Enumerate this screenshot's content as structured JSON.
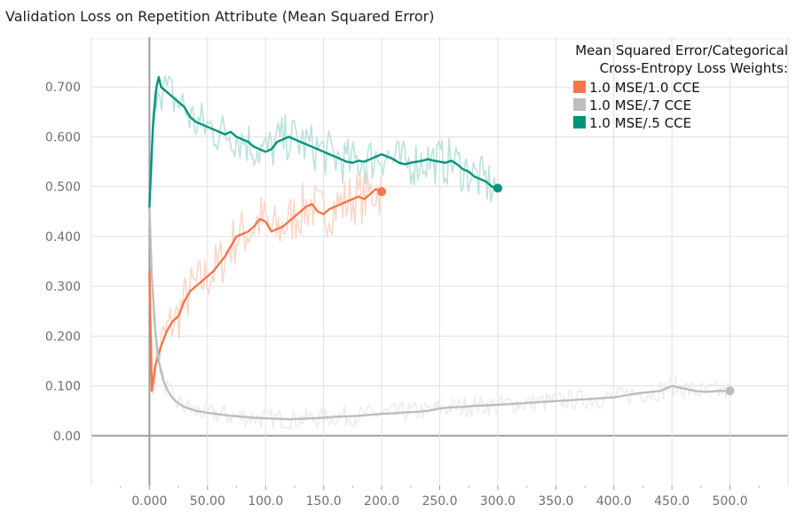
{
  "chart_data": {
    "type": "line",
    "title": "Validation Loss on Repetition Attribute (Mean Squared Error)",
    "xlabel": "",
    "ylabel": "",
    "xlim": [
      -50,
      550
    ],
    "ylim": [
      -0.1,
      0.8
    ],
    "x_ticks": [
      0,
      50,
      100,
      150,
      200,
      250,
      300,
      350,
      400,
      450,
      500
    ],
    "x_tick_labels": [
      "0.000",
      "50.00",
      "100.0",
      "150.0",
      "200.0",
      "250.0",
      "300.0",
      "350.0",
      "400.0",
      "450.0",
      "500.0"
    ],
    "y_ticks": [
      0,
      0.1,
      0.2,
      0.3,
      0.4,
      0.5,
      0.6,
      0.7
    ],
    "y_tick_labels": [
      "0.00",
      "0.100",
      "0.200",
      "0.300",
      "0.400",
      "0.500",
      "0.600",
      "0.700"
    ],
    "grid": true,
    "legend": {
      "title_lines": [
        "Mean Squared Error/Categorical",
        "Cross-Entropy Loss Weights:"
      ],
      "position": "top-right"
    },
    "series": [
      {
        "name": "1.0 MSE/1.0 CCE",
        "color": "#f4764a",
        "raw_color": "#fbd3c3",
        "smoothed": [
          [
            0,
            0.33
          ],
          [
            2,
            0.09
          ],
          [
            5,
            0.14
          ],
          [
            10,
            0.18
          ],
          [
            15,
            0.21
          ],
          [
            20,
            0.23
          ],
          [
            25,
            0.24
          ],
          [
            30,
            0.27
          ],
          [
            35,
            0.29
          ],
          [
            40,
            0.3
          ],
          [
            45,
            0.31
          ],
          [
            50,
            0.32
          ],
          [
            55,
            0.33
          ],
          [
            60,
            0.345
          ],
          [
            65,
            0.36
          ],
          [
            70,
            0.38
          ],
          [
            75,
            0.4
          ],
          [
            80,
            0.405
          ],
          [
            85,
            0.41
          ],
          [
            90,
            0.42
          ],
          [
            95,
            0.435
          ],
          [
            100,
            0.43
          ],
          [
            105,
            0.41
          ],
          [
            110,
            0.415
          ],
          [
            115,
            0.42
          ],
          [
            120,
            0.43
          ],
          [
            125,
            0.44
          ],
          [
            130,
            0.45
          ],
          [
            135,
            0.46
          ],
          [
            140,
            0.465
          ],
          [
            145,
            0.45
          ],
          [
            150,
            0.445
          ],
          [
            155,
            0.455
          ],
          [
            160,
            0.46
          ],
          [
            165,
            0.465
          ],
          [
            170,
            0.47
          ],
          [
            175,
            0.475
          ],
          [
            180,
            0.48
          ],
          [
            185,
            0.475
          ],
          [
            190,
            0.485
          ],
          [
            195,
            0.495
          ],
          [
            200,
            0.49
          ]
        ],
        "final_point": [
          200,
          0.49
        ]
      },
      {
        "name": "1.0 MSE/.7 CCE",
        "color": "#bdbdbd",
        "raw_color": "#ebebeb",
        "smoothed": [
          [
            0,
            0.46
          ],
          [
            2,
            0.32
          ],
          [
            5,
            0.21
          ],
          [
            8,
            0.15
          ],
          [
            12,
            0.11
          ],
          [
            16,
            0.09
          ],
          [
            20,
            0.075
          ],
          [
            25,
            0.065
          ],
          [
            30,
            0.058
          ],
          [
            40,
            0.05
          ],
          [
            50,
            0.046
          ],
          [
            60,
            0.043
          ],
          [
            70,
            0.04
          ],
          [
            80,
            0.038
          ],
          [
            90,
            0.036
          ],
          [
            100,
            0.035
          ],
          [
            110,
            0.034
          ],
          [
            120,
            0.033
          ],
          [
            130,
            0.034
          ],
          [
            140,
            0.035
          ],
          [
            150,
            0.036
          ],
          [
            160,
            0.038
          ],
          [
            170,
            0.039
          ],
          [
            180,
            0.04
          ],
          [
            190,
            0.042
          ],
          [
            200,
            0.044
          ],
          [
            210,
            0.045
          ],
          [
            220,
            0.047
          ],
          [
            230,
            0.048
          ],
          [
            240,
            0.05
          ],
          [
            250,
            0.055
          ],
          [
            260,
            0.057
          ],
          [
            270,
            0.058
          ],
          [
            280,
            0.06
          ],
          [
            290,
            0.061
          ],
          [
            300,
            0.062
          ],
          [
            320,
            0.065
          ],
          [
            340,
            0.068
          ],
          [
            360,
            0.071
          ],
          [
            380,
            0.074
          ],
          [
            400,
            0.077
          ],
          [
            420,
            0.085
          ],
          [
            440,
            0.09
          ],
          [
            450,
            0.1
          ],
          [
            460,
            0.095
          ],
          [
            470,
            0.09
          ],
          [
            480,
            0.088
          ],
          [
            490,
            0.09
          ],
          [
            500,
            0.09
          ]
        ],
        "final_point": [
          500,
          0.09
        ]
      },
      {
        "name": "1.0 MSE/.5 CCE",
        "color": "#00937c",
        "raw_color": "#b4e0d6",
        "smoothed": [
          [
            0,
            0.46
          ],
          [
            3,
            0.62
          ],
          [
            6,
            0.7
          ],
          [
            8,
            0.72
          ],
          [
            10,
            0.7
          ],
          [
            15,
            0.69
          ],
          [
            20,
            0.68
          ],
          [
            25,
            0.67
          ],
          [
            30,
            0.66
          ],
          [
            35,
            0.64
          ],
          [
            40,
            0.63
          ],
          [
            45,
            0.625
          ],
          [
            50,
            0.62
          ],
          [
            55,
            0.615
          ],
          [
            60,
            0.61
          ],
          [
            65,
            0.605
          ],
          [
            70,
            0.61
          ],
          [
            75,
            0.6
          ],
          [
            80,
            0.595
          ],
          [
            85,
            0.59
          ],
          [
            90,
            0.58
          ],
          [
            95,
            0.575
          ],
          [
            100,
            0.57
          ],
          [
            105,
            0.575
          ],
          [
            110,
            0.59
          ],
          [
            115,
            0.595
          ],
          [
            120,
            0.6
          ],
          [
            125,
            0.595
          ],
          [
            130,
            0.59
          ],
          [
            135,
            0.585
          ],
          [
            140,
            0.58
          ],
          [
            145,
            0.575
          ],
          [
            150,
            0.57
          ],
          [
            155,
            0.565
          ],
          [
            160,
            0.56
          ],
          [
            165,
            0.555
          ],
          [
            170,
            0.55
          ],
          [
            175,
            0.548
          ],
          [
            180,
            0.552
          ],
          [
            185,
            0.55
          ],
          [
            190,
            0.555
          ],
          [
            195,
            0.56
          ],
          [
            200,
            0.565
          ],
          [
            205,
            0.56
          ],
          [
            210,
            0.555
          ],
          [
            215,
            0.548
          ],
          [
            220,
            0.545
          ],
          [
            225,
            0.548
          ],
          [
            230,
            0.55
          ],
          [
            235,
            0.552
          ],
          [
            240,
            0.555
          ],
          [
            245,
            0.552
          ],
          [
            250,
            0.55
          ],
          [
            255,
            0.548
          ],
          [
            260,
            0.552
          ],
          [
            265,
            0.545
          ],
          [
            270,
            0.535
          ],
          [
            275,
            0.53
          ],
          [
            280,
            0.52
          ],
          [
            285,
            0.515
          ],
          [
            290,
            0.51
          ],
          [
            295,
            0.5
          ],
          [
            300,
            0.497
          ]
        ],
        "final_point": [
          300,
          0.497
        ]
      }
    ]
  }
}
